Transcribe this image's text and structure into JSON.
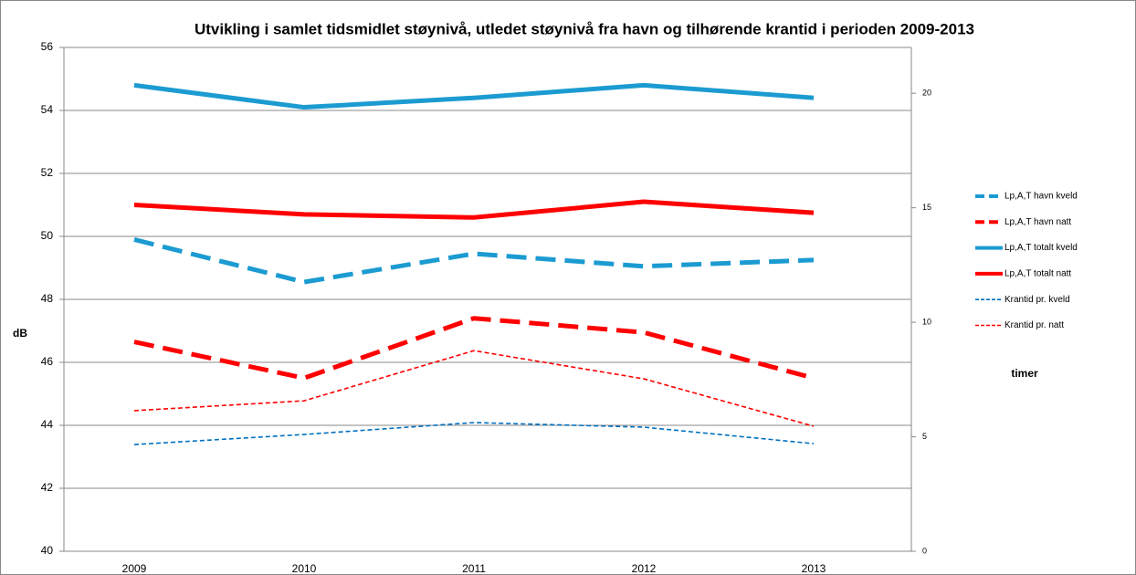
{
  "chart_data": {
    "type": "line",
    "title": "Utvikling i samlet tidsmidlet støynivå, utledet støynivå fra havn og tilhørende krantid i perioden 2009-2013",
    "ylabel": "dB",
    "y2label": "timer",
    "categories": [
      "2009",
      "2010",
      "2011",
      "2012",
      "2013"
    ],
    "ylim": [
      40,
      56
    ],
    "yticks": [
      40,
      42,
      44,
      46,
      48,
      50,
      52,
      54,
      56
    ],
    "y2lim": [
      0,
      22
    ],
    "y2ticks": [
      0,
      5,
      10,
      15,
      20
    ],
    "grid": true,
    "legend": "right",
    "series": [
      {
        "name": "Lp,A,T havn kveld",
        "color": "#1b9bd1",
        "dashed": true,
        "thick": true,
        "values": [
          49.9,
          48.55,
          49.45,
          49.05,
          49.25
        ]
      },
      {
        "name": "Lp,A,T havn natt",
        "color": "#ff0000",
        "dashed": true,
        "thick": true,
        "values": [
          46.65,
          45.5,
          47.4,
          46.95,
          45.5
        ]
      },
      {
        "name": "Lp,A,T totalt kveld",
        "color": "#1b9bd1",
        "dashed": false,
        "thick": true,
        "values": [
          54.8,
          54.1,
          54.4,
          54.8,
          54.4
        ]
      },
      {
        "name": "Lp,A,T totalt natt",
        "color": "#ff0000",
        "dashed": false,
        "thick": true,
        "values": [
          51.0,
          50.7,
          50.6,
          51.1,
          50.75
        ]
      },
      {
        "name": "Krantid pr. kveld",
        "color": "#0070c0",
        "dashed": true,
        "thick": false,
        "axis": "y2",
        "values": [
          4.66,
          5.1,
          5.62,
          5.42,
          4.7
        ]
      },
      {
        "name": "Krantid pr. natt",
        "color": "#ff0000",
        "dashed": true,
        "thick": false,
        "axis": "y2",
        "values": [
          6.14,
          6.57,
          8.76,
          7.53,
          5.46
        ]
      }
    ]
  }
}
